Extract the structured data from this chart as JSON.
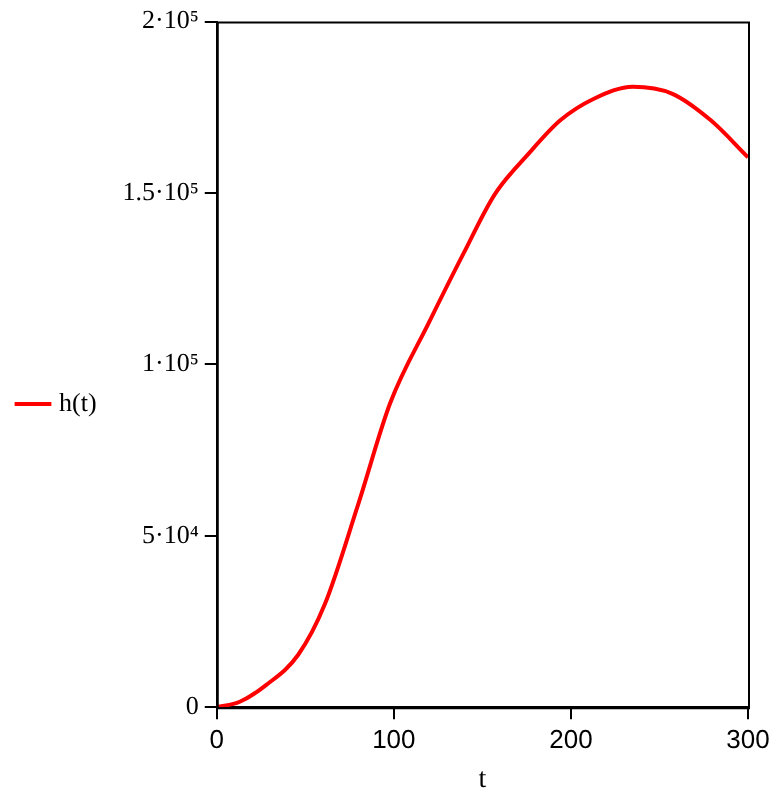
{
  "chart_data": {
    "type": "line",
    "xlabel": "t",
    "legend": "left",
    "grid": false,
    "marker": "none",
    "line_style": "solid",
    "xlim": [
      0,
      300
    ],
    "xticks": [
      0,
      100,
      200,
      300
    ],
    "ylim": [
      0,
      200000
    ],
    "yticks": [
      {
        "value": 0,
        "label": "0"
      },
      {
        "value": 50000,
        "label": "5·10⁴"
      },
      {
        "value": 100000,
        "label": "1·10⁵"
      },
      {
        "value": 150000,
        "label": "1.5·10⁵"
      },
      {
        "value": 200000,
        "label": "2·10⁵"
      }
    ],
    "series": [
      {
        "name": "h(t)",
        "color": "#ff0000",
        "x": [
          0,
          13,
          28,
          46,
          61,
          80,
          98,
          120,
          139,
          157,
          176,
          194,
          213,
          235,
          257,
          279,
          300
        ],
        "values": [
          0,
          1600,
          6500,
          15300,
          30000,
          59400,
          88800,
          112400,
          132000,
          149600,
          161400,
          171200,
          177500,
          181000,
          179000,
          171200,
          160400
        ]
      }
    ]
  }
}
